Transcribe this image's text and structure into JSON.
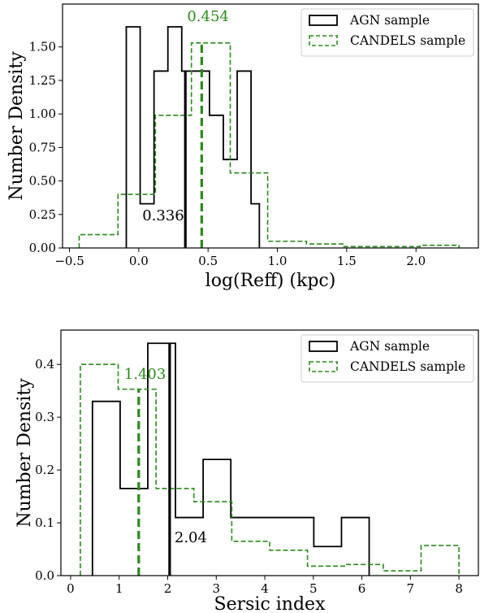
{
  "chart_data": [
    {
      "type": "histogram",
      "xlabel": "log(Reff) (kpc)",
      "ylabel": "Number Density",
      "xlim": [
        -0.55,
        2.45
      ],
      "ylim": [
        0,
        1.82
      ],
      "xticks": [
        -0.5,
        0.0,
        0.5,
        1.0,
        1.5,
        2.0
      ],
      "xtick_labels": [
        "−0.5",
        "0.0",
        "0.5",
        "1.0",
        "1.5",
        "2.0"
      ],
      "yticks": [
        0.0,
        0.25,
        0.5,
        0.75,
        1.0,
        1.25,
        1.5
      ],
      "ytick_labels": [
        "0.00",
        "0.25",
        "0.50",
        "0.75",
        "1.00",
        "1.25",
        "1.50"
      ],
      "legend_position": "top-right",
      "series": [
        {
          "name": "AGN sample",
          "color": "#000000",
          "style": "solid",
          "bin_edges": [
            -0.09,
            0.01,
            0.11,
            0.21,
            0.31,
            0.41,
            0.51,
            0.61,
            0.71,
            0.81,
            0.87
          ],
          "values": [
            1.65,
            0.33,
            1.32,
            1.65,
            1.32,
            1.32,
            0.99,
            0.66,
            1.32,
            0.33
          ]
        },
        {
          "name": "CANDELS sample",
          "color": "#2a8a1a",
          "style": "dashed",
          "bin_edges": [
            -0.43,
            -0.15,
            0.12,
            0.38,
            0.66,
            0.93,
            1.21,
            1.48,
            1.76,
            2.03,
            2.31
          ],
          "values": [
            0.1,
            0.4,
            0.99,
            1.53,
            0.56,
            0.05,
            0.03,
            0.01,
            0.01,
            0.02
          ]
        }
      ],
      "vlines": [
        {
          "x": 0.336,
          "label": "0.336",
          "color": "#000000",
          "style": "solid"
        },
        {
          "x": 0.454,
          "label": "0.454",
          "color": "#2a8a1a",
          "style": "dashed"
        }
      ]
    },
    {
      "type": "histogram",
      "xlabel": "Sersic index",
      "ylabel": "Number Density",
      "xlim": [
        -0.2,
        8.4
      ],
      "ylim": [
        0,
        0.465
      ],
      "xticks": [
        0,
        1,
        2,
        3,
        4,
        5,
        6,
        7,
        8
      ],
      "xtick_labels": [
        "0",
        "1",
        "2",
        "3",
        "4",
        "5",
        "6",
        "7",
        "8"
      ],
      "yticks": [
        0.0,
        0.1,
        0.2,
        0.3,
        0.4
      ],
      "ytick_labels": [
        "0.0",
        "0.1",
        "0.2",
        "0.3",
        "0.4"
      ],
      "legend_position": "top-right",
      "series": [
        {
          "name": "AGN sample",
          "color": "#000000",
          "style": "solid",
          "bin_edges": [
            0.45,
            1.02,
            1.59,
            2.16,
            2.73,
            3.3,
            3.87,
            4.44,
            5.01,
            5.58,
            6.15
          ],
          "values": [
            0.33,
            0.165,
            0.44,
            0.11,
            0.22,
            0.11,
            0.11,
            0.11,
            0.055,
            0.11
          ]
        },
        {
          "name": "CANDELS sample",
          "color": "#2a8a1a",
          "style": "dashed",
          "bin_edges": [
            0.2,
            0.98,
            1.76,
            2.54,
            3.32,
            4.1,
            4.88,
            5.66,
            6.44,
            7.22,
            8.0
          ],
          "values": [
            0.4,
            0.353,
            0.165,
            0.14,
            0.065,
            0.048,
            0.018,
            0.021,
            0.009,
            0.057
          ]
        }
      ],
      "vlines": [
        {
          "x": 2.04,
          "label": "2.04",
          "color": "#000000",
          "style": "solid"
        },
        {
          "x": 1.403,
          "label": "1.403",
          "color": "#2a8a1a",
          "style": "dashed"
        }
      ]
    }
  ]
}
